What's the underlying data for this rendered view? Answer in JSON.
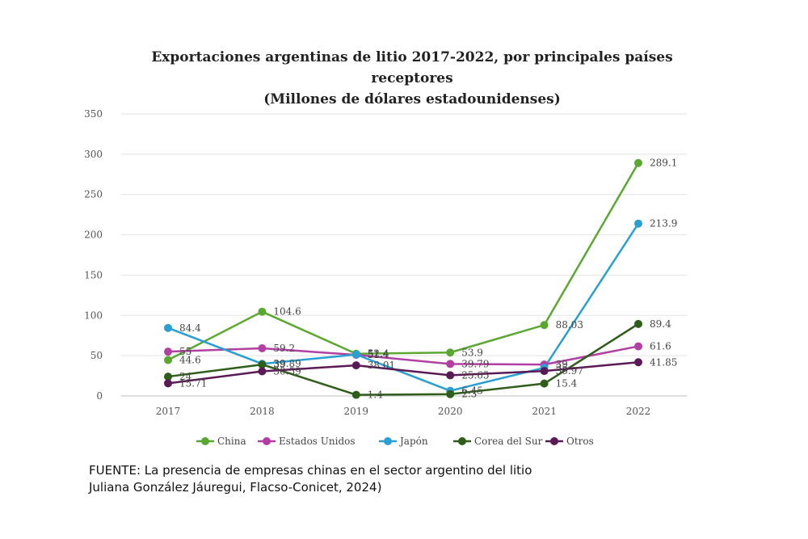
{
  "chart_data": {
    "type": "line",
    "title": "Exportaciones argentinas de litio 2017-2022, por principales países receptores",
    "subtitle": "(Millones de dólares estadounidenses)",
    "categories": [
      "2017",
      "2018",
      "2019",
      "2020",
      "2021",
      "2022"
    ],
    "ylim": [
      0,
      350
    ],
    "yticks": [
      0,
      50,
      100,
      150,
      200,
      250,
      300,
      350
    ],
    "grid": true,
    "legend_position": "bottom",
    "series": [
      {
        "name": "China",
        "color": "#5aa832",
        "values": [
          44.6,
          104.6,
          52.4,
          53.9,
          88.03,
          289.1
        ],
        "labels": [
          "44.6",
          "104.6",
          "52.4",
          "53.9",
          "88.03",
          "289.1"
        ]
      },
      {
        "name": "Estados Unidos",
        "color": "#b23fa3",
        "values": [
          55.0,
          59.2,
          51.0,
          39.79,
          39.0,
          61.6
        ],
        "labels": [
          "55",
          "59.2",
          "51",
          "39.79",
          "39",
          "61.6"
        ]
      },
      {
        "name": "Japón",
        "color": "#2a9fd2",
        "values": [
          84.4,
          39.89,
          51.4,
          6.45,
          35.0,
          213.9
        ],
        "labels": [
          "84.4",
          "39.89",
          "51.4",
          "6.45",
          "35",
          "213.9"
        ]
      },
      {
        "name": "Corea del Sur",
        "color": "#2f5e1a",
        "values": [
          24.0,
          39.0,
          1.4,
          2.3,
          15.4,
          89.4
        ],
        "labels": [
          "24",
          "39",
          "1.4",
          "2.3",
          "15.4",
          "89.4"
        ]
      },
      {
        "name": "Otros",
        "color": "#5a1a55",
        "values": [
          15.71,
          30.59,
          38.01,
          25.65,
          30.97,
          41.85
        ],
        "labels": [
          "15.71",
          "30.59",
          "38.01",
          "25.65",
          "30.97",
          "41.85"
        ]
      }
    ]
  },
  "source": {
    "line1": "FUENTE:  La presencia de empresas chinas en el sector argentino del litio",
    "line2": "Juliana González Jáuregui, Flacso-Conicet, 2024)"
  }
}
